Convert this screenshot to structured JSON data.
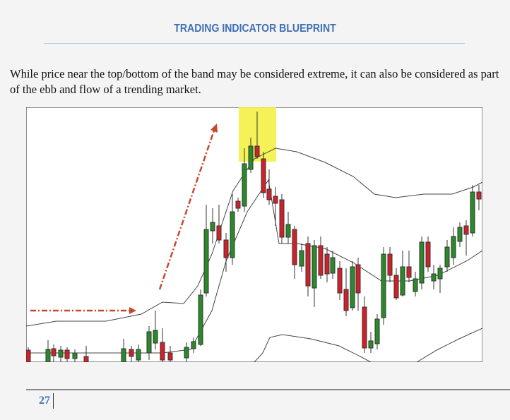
{
  "header": {
    "title": "TRADING INDICATOR BLUEPRINT"
  },
  "body": {
    "paragraph": "While price near the top/bottom of the band may be considered extreme, it can also be considered as part of the ebb and flow of a trending market."
  },
  "footer": {
    "page_number": "27"
  }
}
